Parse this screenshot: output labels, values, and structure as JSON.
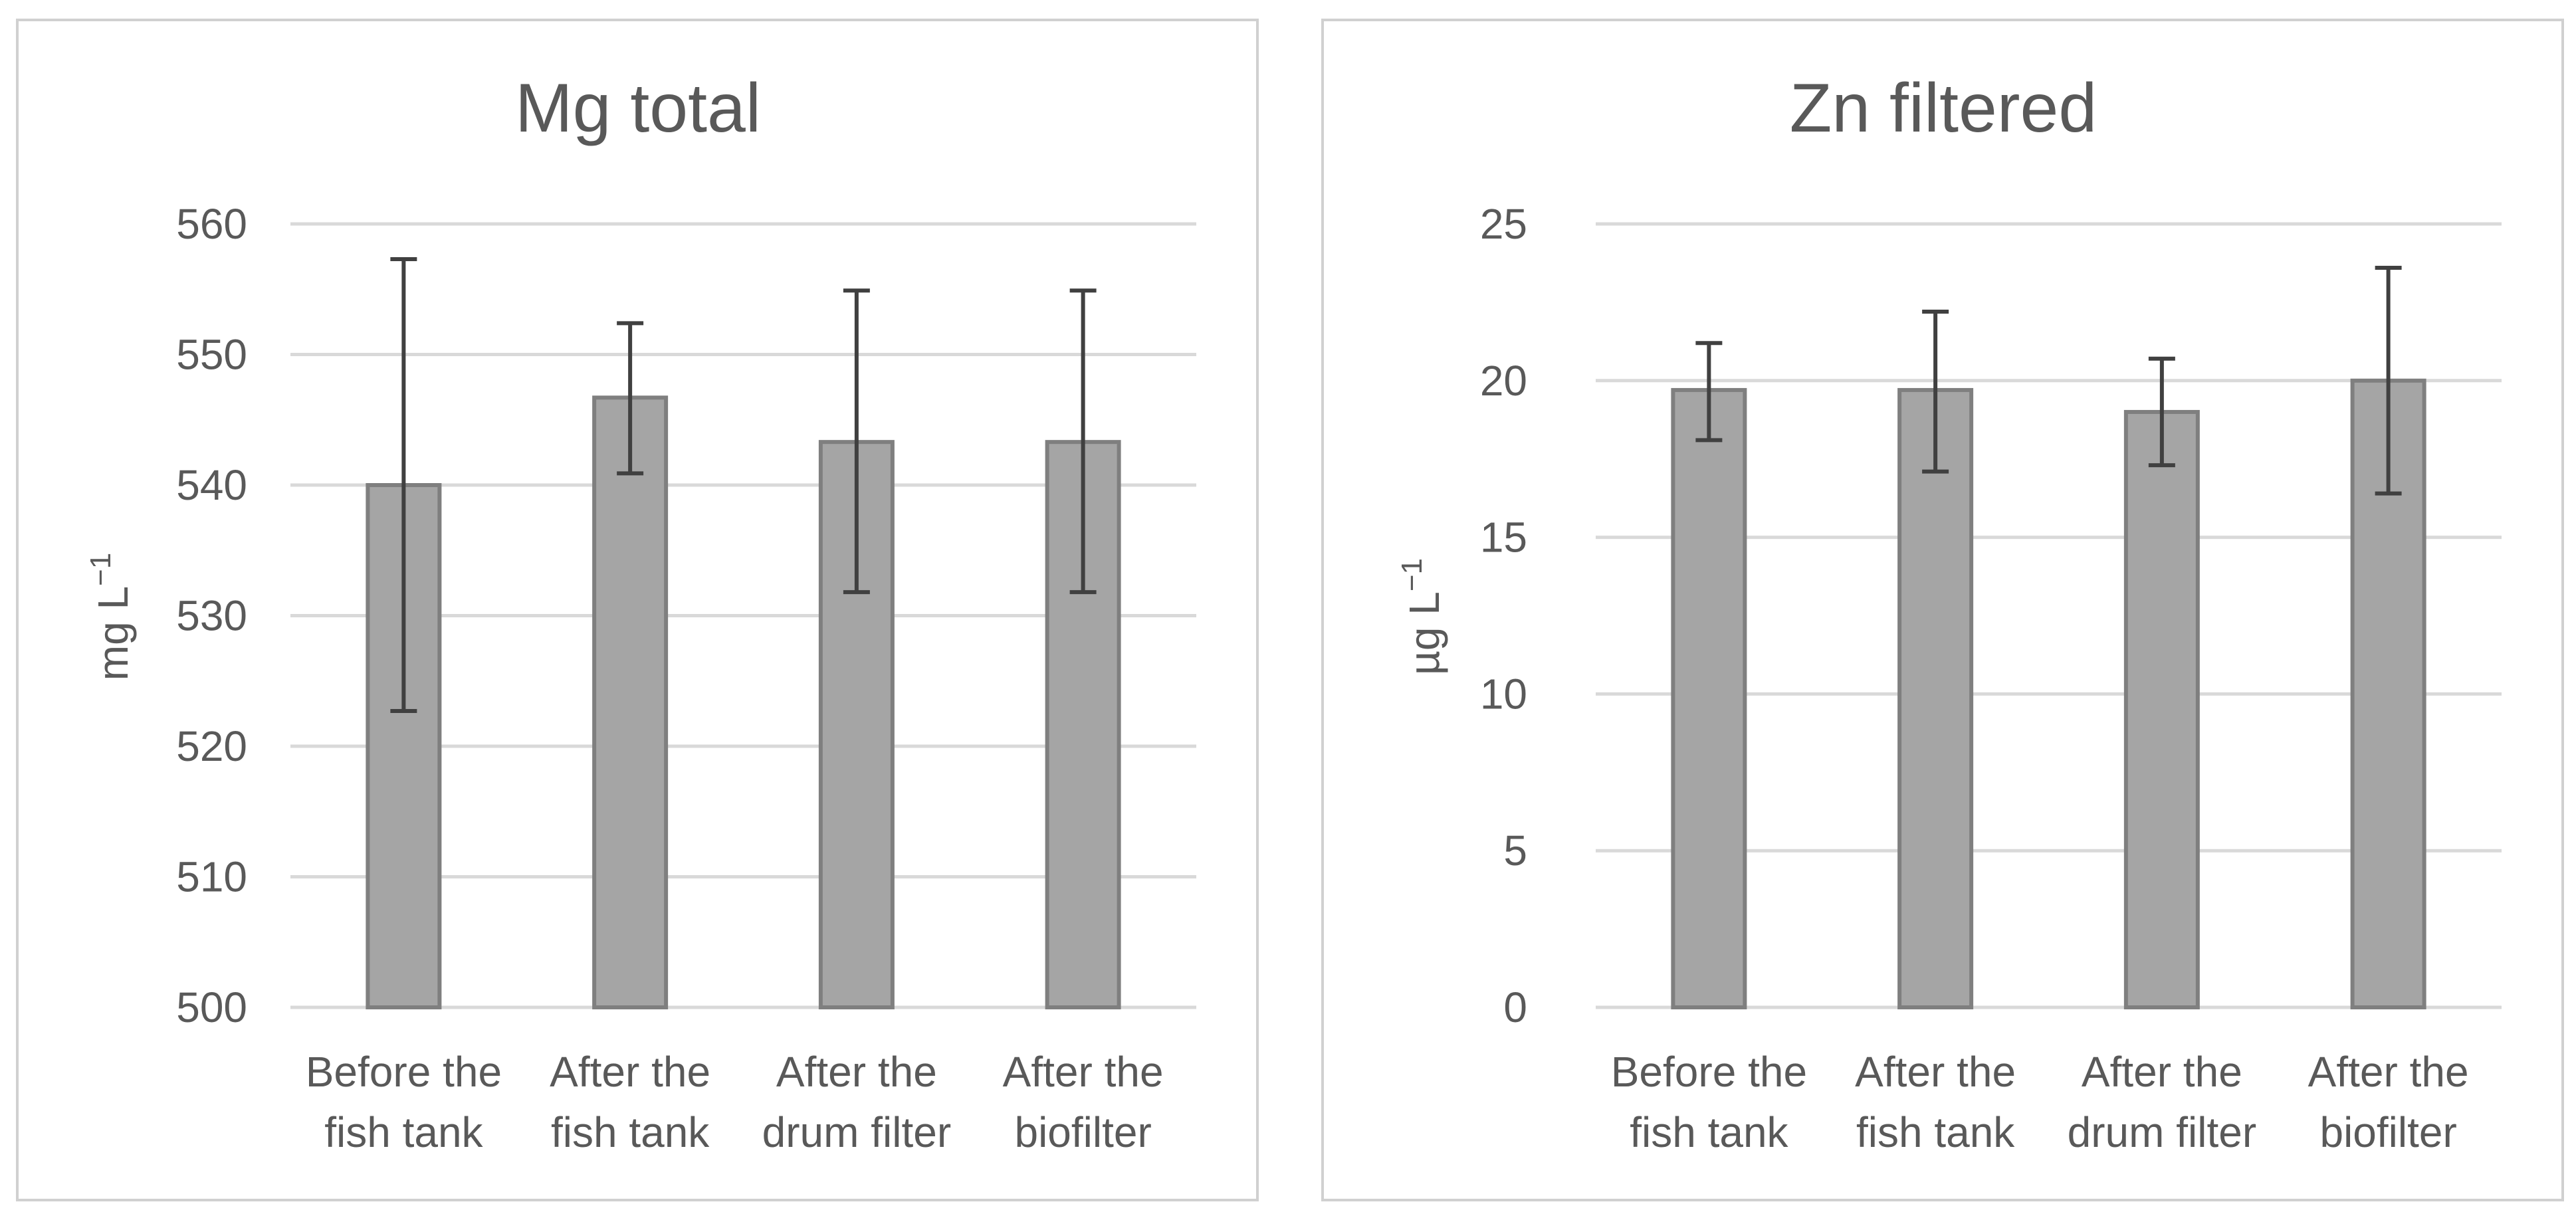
{
  "colors": {
    "bar_fill": "#a5a5a5",
    "bar_stroke": "#7f7f7f",
    "error_bar": "#404040",
    "gridline": "#d9d9d9",
    "panel_border": "#d0d0d0",
    "text": "#595959"
  },
  "chart_data": [
    {
      "type": "bar",
      "title": "Mg total",
      "ylabel": "mg L⁻¹",
      "ylabel_base": "mg L",
      "ylabel_sup": "−1",
      "xlabel": "",
      "ylim": [
        500,
        560
      ],
      "ytick_step": 10,
      "ytick_labels": [
        "500",
        "510",
        "520",
        "530",
        "540",
        "550",
        "560"
      ],
      "grid": true,
      "categories": [
        [
          "Before the",
          "fish tank"
        ],
        [
          "After the",
          "fish tank"
        ],
        [
          "After the",
          "drum filter"
        ],
        [
          "After the",
          "biofilter"
        ]
      ],
      "values": [
        540,
        546.7,
        543.3,
        543.3
      ],
      "error_low": [
        522.7,
        540.9,
        531.8,
        531.8
      ],
      "error_high": [
        557.3,
        552.4,
        554.9,
        554.9
      ]
    },
    {
      "type": "bar",
      "title": "Zn filtered",
      "ylabel": "µg L⁻¹",
      "ylabel_base": "µg L",
      "ylabel_sup": "−1",
      "xlabel": "",
      "ylim": [
        0,
        25
      ],
      "ytick_step": 5,
      "ytick_labels": [
        "0",
        "5",
        "10",
        "15",
        "20",
        "25"
      ],
      "grid": true,
      "categories": [
        [
          "Before the",
          "fish tank"
        ],
        [
          "After the",
          "fish tank"
        ],
        [
          "After the",
          "drum filter"
        ],
        [
          "After the",
          "biofilter"
        ]
      ],
      "values": [
        19.7,
        19.7,
        19.0,
        20.0
      ],
      "error_low": [
        18.1,
        17.1,
        17.3,
        16.4
      ],
      "error_high": [
        21.2,
        22.2,
        20.7,
        23.6
      ]
    }
  ]
}
